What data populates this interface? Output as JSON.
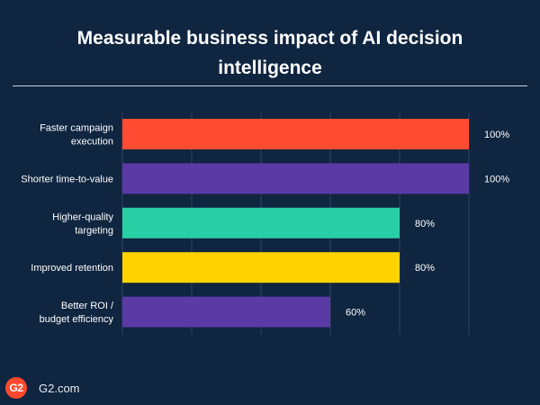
{
  "title_line1": "Measurable business impact of AI decision",
  "title_line2": "intelligence",
  "footer": {
    "logo_text": "G2",
    "site": "G2.com"
  },
  "colors": {
    "background": "#0f2540",
    "grid": "#2c4463"
  },
  "chart_data": {
    "type": "bar",
    "orientation": "horizontal",
    "title": "Measurable business impact of AI decision intelligence",
    "categories": [
      [
        "Faster campaign",
        "execution"
      ],
      [
        "Shorter time-to-value"
      ],
      [
        "Higher-quality",
        "targeting"
      ],
      [
        "Improved retention"
      ],
      [
        "Better ROI /",
        "budget efficiency"
      ]
    ],
    "values": [
      100,
      100,
      80,
      80,
      60
    ],
    "value_labels": [
      "100%",
      "100%",
      "80%",
      "80%",
      "60%"
    ],
    "bar_colors": [
      "#ff4b32",
      "#5b3aa6",
      "#29cfa4",
      "#ffd200",
      "#5b3aa6"
    ],
    "xlim": [
      0,
      100
    ],
    "grid": true,
    "legend": "none"
  }
}
